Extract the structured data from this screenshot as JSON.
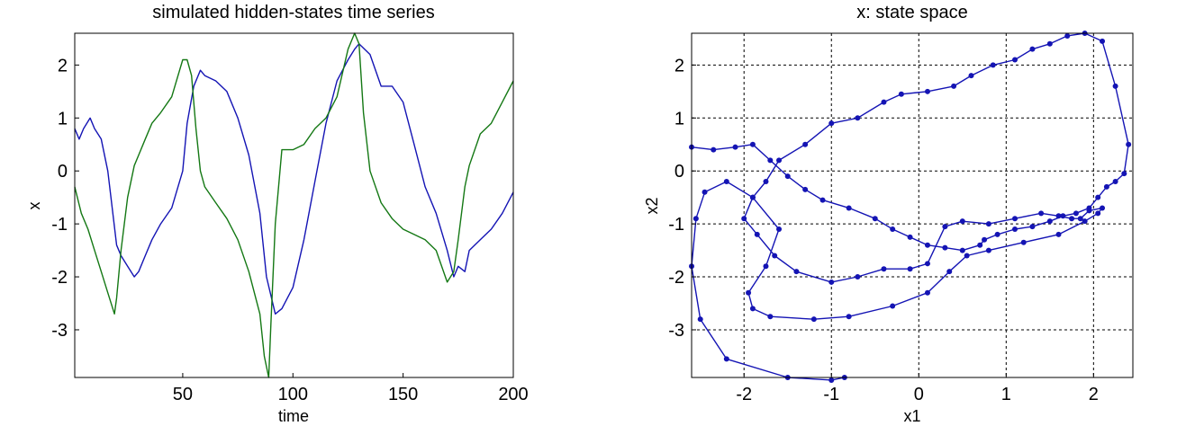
{
  "chart_data": [
    {
      "type": "line",
      "title": "simulated hidden-states time series",
      "xlabel": "time",
      "ylabel": "x",
      "xlim": [
        1,
        200
      ],
      "ylim": [
        -3.9,
        2.6
      ],
      "xticks": [
        50,
        100,
        150,
        200
      ],
      "yticks": [
        2,
        1,
        0,
        -1,
        -2,
        -3
      ],
      "xtick_labels": [
        "50",
        "100",
        "150",
        "200"
      ],
      "ytick_labels": [
        "2",
        "1",
        "0",
        "-1",
        "-2",
        "-3"
      ],
      "grid": false,
      "series": [
        {
          "color": "#1414b4",
          "x": [
            1,
            3,
            5,
            8,
            10,
            13,
            16,
            18,
            20,
            22,
            25,
            28,
            30,
            33,
            36,
            40,
            45,
            50,
            52,
            55,
            58,
            60,
            65,
            70,
            75,
            80,
            85,
            88,
            92,
            95,
            100,
            105,
            110,
            115,
            120,
            125,
            128,
            130,
            135,
            140,
            145,
            150,
            155,
            160,
            165,
            170,
            173,
            175,
            178,
            180,
            185,
            190,
            195,
            200
          ],
          "y": [
            0.8,
            0.6,
            0.8,
            1.0,
            0.8,
            0.6,
            0.0,
            -0.7,
            -1.4,
            -1.6,
            -1.8,
            -2.0,
            -1.9,
            -1.6,
            -1.3,
            -1.0,
            -0.7,
            0.0,
            0.9,
            1.6,
            1.9,
            1.8,
            1.7,
            1.5,
            1.0,
            0.3,
            -0.8,
            -2.0,
            -2.7,
            -2.6,
            -2.2,
            -1.3,
            -0.2,
            0.9,
            1.7,
            2.1,
            2.3,
            2.4,
            2.2,
            1.6,
            1.6,
            1.3,
            0.5,
            -0.3,
            -0.8,
            -1.5,
            -2.0,
            -1.8,
            -1.9,
            -1.5,
            -1.3,
            -1.1,
            -0.8,
            -0.4
          ]
        },
        {
          "color": "#147814",
          "x": [
            1,
            4,
            7,
            10,
            13,
            16,
            19,
            20,
            22,
            25,
            28,
            30,
            33,
            36,
            40,
            45,
            50,
            52,
            54,
            56,
            58,
            60,
            65,
            70,
            75,
            80,
            85,
            87,
            89,
            90,
            92,
            95,
            100,
            105,
            110,
            115,
            120,
            125,
            128,
            130,
            132,
            135,
            140,
            145,
            150,
            155,
            160,
            165,
            170,
            173,
            175,
            178,
            180,
            185,
            190,
            195,
            200
          ],
          "y": [
            -0.3,
            -0.8,
            -1.1,
            -1.5,
            -1.9,
            -2.3,
            -2.7,
            -2.4,
            -1.5,
            -0.5,
            0.1,
            0.3,
            0.6,
            0.9,
            1.1,
            1.4,
            2.1,
            2.1,
            1.8,
            0.8,
            0.0,
            -0.3,
            -0.6,
            -0.9,
            -1.3,
            -1.9,
            -2.7,
            -3.5,
            -3.9,
            -2.9,
            -1.0,
            0.4,
            0.4,
            0.5,
            0.8,
            1.0,
            1.4,
            2.3,
            2.6,
            2.4,
            1.1,
            0.0,
            -0.6,
            -0.9,
            -1.1,
            -1.2,
            -1.3,
            -1.5,
            -2.1,
            -1.9,
            -1.3,
            -0.3,
            0.1,
            0.7,
            0.9,
            1.3,
            1.7
          ]
        }
      ]
    },
    {
      "type": "line",
      "title": "x: state space",
      "xlabel": "x1",
      "ylabel": "x2",
      "xlim": [
        -2.6,
        2.45
      ],
      "ylim": [
        -3.9,
        2.6
      ],
      "xticks": [
        -2,
        -1,
        0,
        1,
        2
      ],
      "yticks": [
        2,
        1,
        0,
        -1,
        -2,
        -3
      ],
      "xtick_labels": [
        "-2",
        "-1",
        "0",
        "1",
        "2"
      ],
      "ytick_labels": [
        "2",
        "1",
        "0",
        "-1",
        "-2",
        "-3"
      ],
      "grid": true,
      "markers": true,
      "series": [
        {
          "color": "#1414b4",
          "x": [
            -0.85,
            -1.0,
            -1.5,
            -2.2,
            -2.5,
            -2.6,
            -2.55,
            -2.45,
            -2.2,
            -1.9,
            -1.6,
            -1.75,
            -1.95,
            -1.9,
            -1.7,
            -1.2,
            -0.8,
            -0.3,
            0.1,
            0.35,
            0.55,
            0.8,
            1.2,
            1.6,
            1.9,
            2.05,
            2.1,
            1.95,
            1.85,
            1.75,
            1.6,
            1.4,
            1.1,
            0.8,
            0.5,
            0.3,
            0.1,
            -0.1,
            -0.4,
            -0.7,
            -1.0,
            -1.4,
            -1.65,
            -1.85,
            -2.0,
            -1.9,
            -1.75,
            -1.6,
            -1.3,
            -1.0,
            -0.7,
            -0.4,
            -0.2,
            0.1,
            0.4,
            0.6,
            0.85,
            1.1,
            1.3,
            1.5,
            1.7,
            1.9,
            2.1,
            2.25,
            2.4,
            2.35,
            2.25,
            2.15,
            2.05,
            1.95,
            1.8,
            1.65,
            1.5,
            1.3,
            1.1,
            0.9,
            0.75,
            0.7,
            0.5,
            0.3,
            0.1,
            -0.1,
            -0.3,
            -0.5,
            -0.8,
            -1.1,
            -1.3,
            -1.5,
            -1.7,
            -1.9,
            -2.1,
            -2.35,
            -2.6
          ],
          "y": [
            -3.9,
            -3.95,
            -3.9,
            -3.55,
            -2.8,
            -1.8,
            -0.9,
            -0.4,
            -0.2,
            -0.5,
            -1.1,
            -1.8,
            -2.3,
            -2.6,
            -2.75,
            -2.8,
            -2.75,
            -2.55,
            -2.3,
            -1.9,
            -1.6,
            -1.5,
            -1.35,
            -1.2,
            -0.95,
            -0.8,
            -0.7,
            -0.75,
            -0.9,
            -0.9,
            -0.85,
            -0.8,
            -0.9,
            -1.0,
            -0.95,
            -1.05,
            -1.75,
            -1.85,
            -1.85,
            -2.0,
            -2.1,
            -1.9,
            -1.6,
            -1.2,
            -0.9,
            -0.5,
            -0.2,
            0.2,
            0.5,
            0.9,
            1.0,
            1.3,
            1.45,
            1.5,
            1.6,
            1.8,
            2.0,
            2.1,
            2.3,
            2.4,
            2.55,
            2.6,
            2.45,
            1.6,
            0.5,
            -0.05,
            -0.2,
            -0.3,
            -0.5,
            -0.7,
            -0.8,
            -0.85,
            -0.95,
            -1.05,
            -1.1,
            -1.2,
            -1.3,
            -1.4,
            -1.5,
            -1.45,
            -1.4,
            -1.25,
            -1.1,
            -0.9,
            -0.7,
            -0.55,
            -0.35,
            -0.1,
            0.2,
            0.5,
            0.45,
            0.4,
            0.45
          ]
        }
      ]
    }
  ]
}
